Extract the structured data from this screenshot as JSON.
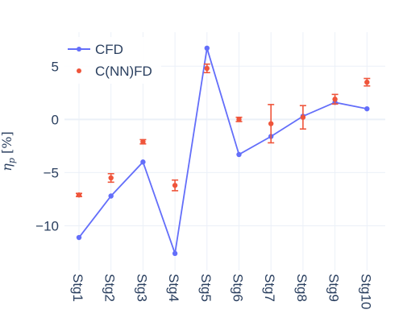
{
  "chart_data": {
    "type": "line",
    "title": "",
    "xlabel": "",
    "ylabel": "η_p [%]",
    "ylabel_main": "η",
    "ylabel_sub": "p",
    "ylabel_unit": " [%]",
    "categories": [
      "Stg1",
      "Stg2",
      "Stg3",
      "Stg4",
      "Stg5",
      "Stg6",
      "Stg7",
      "Stg8",
      "Stg9",
      "Stg10"
    ],
    "ylim": [
      -14.2,
      8.2
    ],
    "yticks": [
      -10,
      -5,
      0,
      5
    ],
    "ytick_labels": [
      "−10",
      "−5",
      "0",
      "5"
    ],
    "grid": true,
    "legend": {
      "position": "top-left"
    },
    "colors": {
      "cfd": "#636efa",
      "cnnfd": "#ef553b",
      "grid": "#ebf0f8",
      "zeroline": "#ebf0f8",
      "text": "#2a3f5f"
    },
    "series": [
      {
        "name": "CFD",
        "mode": "lines+markers",
        "values": [
          -11.1,
          -7.2,
          -4.0,
          -12.6,
          6.7,
          -3.3,
          -1.6,
          0.3,
          1.6,
          1.0
        ]
      },
      {
        "name": "C(NN)FD",
        "mode": "markers",
        "values": [
          -7.1,
          -5.5,
          -2.1,
          -6.2,
          4.8,
          0.0,
          -0.4,
          0.2,
          1.9,
          3.5
        ],
        "error": [
          0.15,
          0.4,
          0.2,
          0.5,
          0.4,
          0.2,
          1.8,
          1.1,
          0.45,
          0.35
        ]
      }
    ]
  }
}
